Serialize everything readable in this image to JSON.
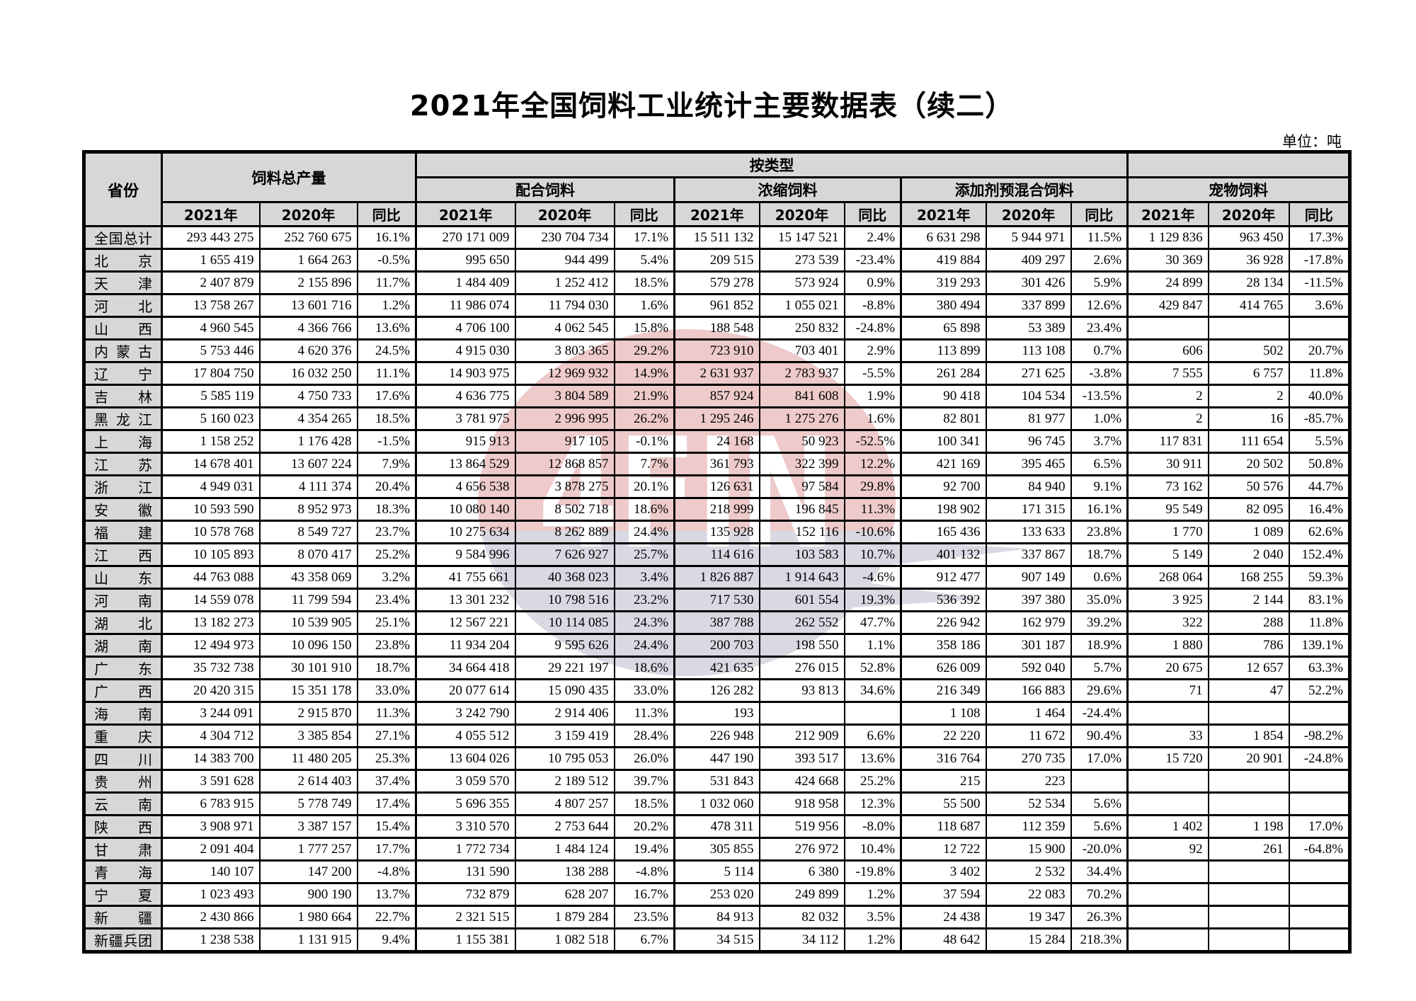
{
  "page": {
    "title": "2021年全国饲料工业统计主要数据表（续二）",
    "unit_label": "单位：吨"
  },
  "watermark": {
    "circle_color": "#eecaca",
    "swoosh_color": "#d8d9e3",
    "letters": "4FIN"
  },
  "table": {
    "header": {
      "province": "省份",
      "total": "饲料总产量",
      "by_type": "按类型",
      "groups": [
        "配合饲料",
        "浓缩饲料",
        "添加剂预混合饲料",
        "宠物饲料"
      ],
      "year_cols": [
        "2021年",
        "2020年",
        "同比"
      ]
    },
    "rows": [
      {
        "province": "全国总计",
        "v": [
          "293 443 275",
          "252 760 675",
          "16.1%",
          "270 171 009",
          "230 704 734",
          "17.1%",
          "15 511 132",
          "15 147 521",
          "2.4%",
          "6 631 298",
          "5 944 971",
          "11.5%",
          "1 129 836",
          "963 450",
          "17.3%"
        ]
      },
      {
        "province": "北京",
        "v": [
          "1 655 419",
          "1 664 263",
          "-0.5%",
          "995 650",
          "944 499",
          "5.4%",
          "209 515",
          "273 539",
          "-23.4%",
          "419 884",
          "409 297",
          "2.6%",
          "30 369",
          "36 928",
          "-17.8%"
        ]
      },
      {
        "province": "天津",
        "v": [
          "2 407 879",
          "2 155 896",
          "11.7%",
          "1 484 409",
          "1 252 412",
          "18.5%",
          "579 278",
          "573 924",
          "0.9%",
          "319 293",
          "301 426",
          "5.9%",
          "24 899",
          "28 134",
          "-11.5%"
        ]
      },
      {
        "province": "河北",
        "v": [
          "13 758 267",
          "13 601 716",
          "1.2%",
          "11 986 074",
          "11 794 030",
          "1.6%",
          "961 852",
          "1 055 021",
          "-8.8%",
          "380 494",
          "337 899",
          "12.6%",
          "429 847",
          "414 765",
          "3.6%"
        ]
      },
      {
        "province": "山西",
        "v": [
          "4 960 545",
          "4 366 766",
          "13.6%",
          "4 706 100",
          "4 062 545",
          "15.8%",
          "188 548",
          "250 832",
          "-24.8%",
          "65 898",
          "53 389",
          "23.4%",
          "",
          "",
          ""
        ]
      },
      {
        "province": "内蒙古",
        "v": [
          "5 753 446",
          "4 620 376",
          "24.5%",
          "4 915 030",
          "3 803 365",
          "29.2%",
          "723 910",
          "703 401",
          "2.9%",
          "113 899",
          "113 108",
          "0.7%",
          "606",
          "502",
          "20.7%"
        ]
      },
      {
        "province": "辽宁",
        "v": [
          "17 804 750",
          "16 032 250",
          "11.1%",
          "14 903 975",
          "12 969 932",
          "14.9%",
          "2 631 937",
          "2 783 937",
          "-5.5%",
          "261 284",
          "271 625",
          "-3.8%",
          "7 555",
          "6 757",
          "11.8%"
        ]
      },
      {
        "province": "吉林",
        "v": [
          "5 585 119",
          "4 750 733",
          "17.6%",
          "4 636 775",
          "3 804 589",
          "21.9%",
          "857 924",
          "841 608",
          "1.9%",
          "90 418",
          "104 534",
          "-13.5%",
          "2",
          "2",
          "40.0%"
        ]
      },
      {
        "province": "黑龙江",
        "v": [
          "5 160 023",
          "4 354 265",
          "18.5%",
          "3 781 975",
          "2 996 995",
          "26.2%",
          "1 295 246",
          "1 275 276",
          "1.6%",
          "82 801",
          "81 977",
          "1.0%",
          "2",
          "16",
          "-85.7%"
        ]
      },
      {
        "province": "上海",
        "v": [
          "1 158 252",
          "1 176 428",
          "-1.5%",
          "915 913",
          "917 105",
          "-0.1%",
          "24 168",
          "50 923",
          "-52.5%",
          "100 341",
          "96 745",
          "3.7%",
          "117 831",
          "111 654",
          "5.5%"
        ]
      },
      {
        "province": "江苏",
        "v": [
          "14 678 401",
          "13 607 224",
          "7.9%",
          "13 864 529",
          "12 868 857",
          "7.7%",
          "361 793",
          "322 399",
          "12.2%",
          "421 169",
          "395 465",
          "6.5%",
          "30 911",
          "20 502",
          "50.8%"
        ]
      },
      {
        "province": "浙江",
        "v": [
          "4 949 031",
          "4 111 374",
          "20.4%",
          "4 656 538",
          "3 878 275",
          "20.1%",
          "126 631",
          "97 584",
          "29.8%",
          "92 700",
          "84 940",
          "9.1%",
          "73 162",
          "50 576",
          "44.7%"
        ]
      },
      {
        "province": "安徽",
        "v": [
          "10 593 590",
          "8 952 973",
          "18.3%",
          "10 080 140",
          "8 502 718",
          "18.6%",
          "218 999",
          "196 845",
          "11.3%",
          "198 902",
          "171 315",
          "16.1%",
          "95 549",
          "82 095",
          "16.4%"
        ]
      },
      {
        "province": "福建",
        "v": [
          "10 578 768",
          "8 549 727",
          "23.7%",
          "10 275 634",
          "8 262 889",
          "24.4%",
          "135 928",
          "152 116",
          "-10.6%",
          "165 436",
          "133 633",
          "23.8%",
          "1 770",
          "1 089",
          "62.6%"
        ]
      },
      {
        "province": "江西",
        "v": [
          "10 105 893",
          "8 070 417",
          "25.2%",
          "9 584 996",
          "7 626 927",
          "25.7%",
          "114 616",
          "103 583",
          "10.7%",
          "401 132",
          "337 867",
          "18.7%",
          "5 149",
          "2 040",
          "152.4%"
        ]
      },
      {
        "province": "山东",
        "v": [
          "44 763 088",
          "43 358 069",
          "3.2%",
          "41 755 661",
          "40 368 023",
          "3.4%",
          "1 826 887",
          "1 914 643",
          "-4.6%",
          "912 477",
          "907 149",
          "0.6%",
          "268 064",
          "168 255",
          "59.3%"
        ]
      },
      {
        "province": "河南",
        "v": [
          "14 559 078",
          "11 799 594",
          "23.4%",
          "13 301 232",
          "10 798 516",
          "23.2%",
          "717 530",
          "601 554",
          "19.3%",
          "536 392",
          "397 380",
          "35.0%",
          "3 925",
          "2 144",
          "83.1%"
        ]
      },
      {
        "province": "湖北",
        "v": [
          "13 182 273",
          "10 539 905",
          "25.1%",
          "12 567 221",
          "10 114 085",
          "24.3%",
          "387 788",
          "262 552",
          "47.7%",
          "226 942",
          "162 979",
          "39.2%",
          "322",
          "288",
          "11.8%"
        ]
      },
      {
        "province": "湖南",
        "v": [
          "12 494 973",
          "10 096 150",
          "23.8%",
          "11 934 204",
          "9 595 626",
          "24.4%",
          "200 703",
          "198 550",
          "1.1%",
          "358 186",
          "301 187",
          "18.9%",
          "1 880",
          "786",
          "139.1%"
        ]
      },
      {
        "province": "广东",
        "v": [
          "35 732 738",
          "30 101 910",
          "18.7%",
          "34 664 418",
          "29 221 197",
          "18.6%",
          "421 635",
          "276 015",
          "52.8%",
          "626 009",
          "592 040",
          "5.7%",
          "20 675",
          "12 657",
          "63.3%"
        ]
      },
      {
        "province": "广西",
        "v": [
          "20 420 315",
          "15 351 178",
          "33.0%",
          "20 077 614",
          "15 090 435",
          "33.0%",
          "126 282",
          "93 813",
          "34.6%",
          "216 349",
          "166 883",
          "29.6%",
          "71",
          "47",
          "52.2%"
        ]
      },
      {
        "province": "海南",
        "v": [
          "3 244 091",
          "2 915 870",
          "11.3%",
          "3 242 790",
          "2 914 406",
          "11.3%",
          "193",
          "",
          "",
          "1 108",
          "1 464",
          "-24.4%",
          "",
          "",
          ""
        ]
      },
      {
        "province": "重庆",
        "v": [
          "4 304 712",
          "3 385 854",
          "27.1%",
          "4 055 512",
          "3 159 419",
          "28.4%",
          "226 948",
          "212 909",
          "6.6%",
          "22 220",
          "11 672",
          "90.4%",
          "33",
          "1 854",
          "-98.2%"
        ]
      },
      {
        "province": "四川",
        "v": [
          "14 383 700",
          "11 480 205",
          "25.3%",
          "13 604 026",
          "10 795 053",
          "26.0%",
          "447 190",
          "393 517",
          "13.6%",
          "316 764",
          "270 735",
          "17.0%",
          "15 720",
          "20 901",
          "-24.8%"
        ]
      },
      {
        "province": "贵州",
        "v": [
          "3 591 628",
          "2 614 403",
          "37.4%",
          "3 059 570",
          "2 189 512",
          "39.7%",
          "531 843",
          "424 668",
          "25.2%",
          "215",
          "223",
          "",
          "",
          "",
          ""
        ]
      },
      {
        "province": "云南",
        "v": [
          "6 783 915",
          "5 778 749",
          "17.4%",
          "5 696 355",
          "4 807 257",
          "18.5%",
          "1 032 060",
          "918 958",
          "12.3%",
          "55 500",
          "52 534",
          "5.6%",
          "",
          "",
          ""
        ]
      },
      {
        "province": "陕西",
        "v": [
          "3 908 971",
          "3 387 157",
          "15.4%",
          "3 310 570",
          "2 753 644",
          "20.2%",
          "478 311",
          "519 956",
          "-8.0%",
          "118 687",
          "112 359",
          "5.6%",
          "1 402",
          "1 198",
          "17.0%"
        ]
      },
      {
        "province": "甘肃",
        "v": [
          "2 091 404",
          "1 777 257",
          "17.7%",
          "1 772 734",
          "1 484 124",
          "19.4%",
          "305 855",
          "276 972",
          "10.4%",
          "12 722",
          "15 900",
          "-20.0%",
          "92",
          "261",
          "-64.8%"
        ]
      },
      {
        "province": "青海",
        "v": [
          "140 107",
          "147 200",
          "-4.8%",
          "131 590",
          "138 288",
          "-4.8%",
          "5 114",
          "6 380",
          "-19.8%",
          "3 402",
          "2 532",
          "34.4%",
          "",
          "",
          ""
        ]
      },
      {
        "province": "宁夏",
        "v": [
          "1 023 493",
          "900 190",
          "13.7%",
          "732 879",
          "628 207",
          "16.7%",
          "253 020",
          "249 899",
          "1.2%",
          "37 594",
          "22 083",
          "70.2%",
          "",
          "",
          ""
        ]
      },
      {
        "province": "新疆",
        "v": [
          "2 430 866",
          "1 980 664",
          "22.7%",
          "2 321 515",
          "1 879 284",
          "23.5%",
          "84 913",
          "82 032",
          "3.5%",
          "24 438",
          "19 347",
          "26.3%",
          "",
          "",
          ""
        ]
      },
      {
        "province": "新疆兵团",
        "v": [
          "1 238 538",
          "1 131 915",
          "9.4%",
          "1 155 381",
          "1 082 518",
          "6.7%",
          "34 515",
          "34 112",
          "1.2%",
          "48 642",
          "15 284",
          "218.3%",
          "",
          "",
          ""
        ]
      }
    ]
  }
}
